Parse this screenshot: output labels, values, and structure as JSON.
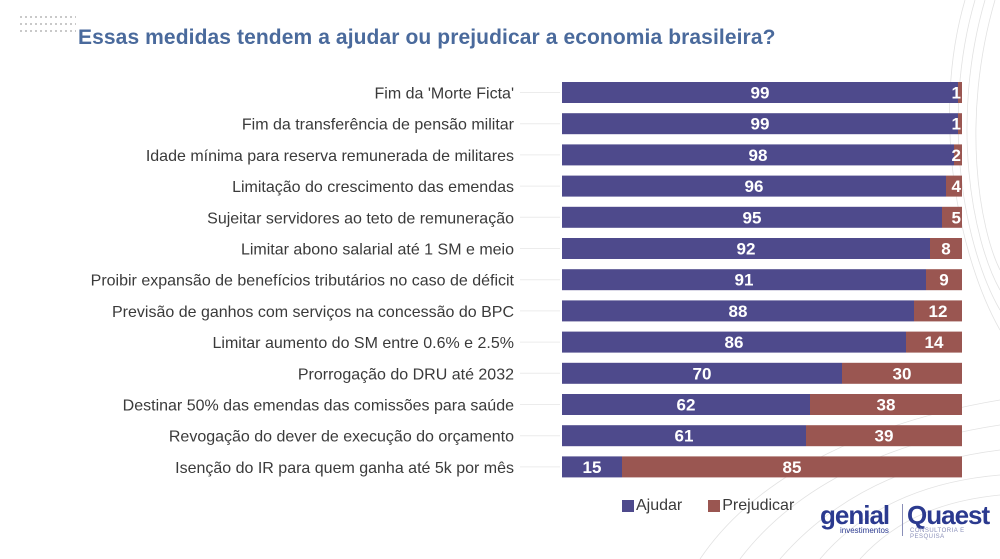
{
  "header": {
    "title": "Essas medidas tendem a ajudar ou prejudicar a economia brasileira?"
  },
  "legend": {
    "items": [
      {
        "label": "Ajudar",
        "color": "#4e4a8c"
      },
      {
        "label": "Prejudicar",
        "color": "#9a5651"
      }
    ]
  },
  "logos": {
    "genial": "genial",
    "genial_sub": "investimentos",
    "quaest": "Quaest",
    "quaest_sub": "CONSULTORIA E PESQUISA"
  },
  "chart_data": {
    "type": "bar",
    "orientation": "horizontal",
    "stacked": true,
    "title": "Essas medidas tendem a ajudar ou prejudicar a economia brasileira?",
    "xlabel": "",
    "ylabel": "",
    "xlim": [
      0,
      100
    ],
    "grid": false,
    "legend_position": "bottom-right",
    "categories": [
      "Fim da 'Morte Ficta'",
      "Fim da transferência de pensão militar",
      "Idade mínima para reserva remunerada de militares",
      "Limitação do crescimento das emendas",
      "Sujeitar servidores ao teto de remuneração",
      "Limitar abono salarial até 1 SM e meio",
      "Proibir expansão de benefícios tributários no caso de déficit",
      "Previsão de ganhos com serviços na concessão do BPC",
      "Limitar aumento do SM entre 0.6% e 2.5%",
      "Prorrogação do DRU até 2032",
      "Destinar 50% das emendas das comissões para saúde",
      "Revogação do dever de execução do orçamento",
      "Isenção do IR para quem ganha até 5k por mês"
    ],
    "series": [
      {
        "name": "Ajudar",
        "color": "#4e4a8c",
        "values": [
          99,
          99,
          98,
          96,
          95,
          92,
          91,
          88,
          86,
          70,
          62,
          61,
          15
        ]
      },
      {
        "name": "Prejudicar",
        "color": "#9a5651",
        "values": [
          1,
          1,
          2,
          4,
          5,
          8,
          9,
          12,
          14,
          30,
          38,
          39,
          85
        ]
      }
    ]
  }
}
